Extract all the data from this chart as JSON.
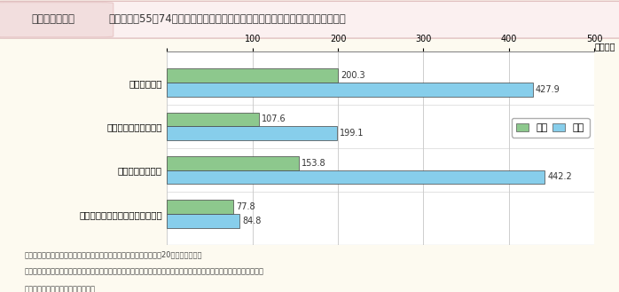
{
  "title_box_text": "第１－４－１図",
  "title_main_text": "高齢者等（55～74歳）の本人の就業パターンによる年間収入（平均額）（性別）",
  "categories": [
    "主に正規雇用",
    "非正規雇用が最も長い",
    "自営業が最も長い",
    "仕事をしていない期間が最も長い"
  ],
  "female_values": [
    200.3,
    107.6,
    153.8,
    77.8
  ],
  "male_values": [
    427.9,
    199.1,
    442.2,
    84.8
  ],
  "female_color": "#8DC88D",
  "male_color": "#87CEEB",
  "female_label": "女性",
  "male_label": "男性",
  "xlim": [
    0,
    500
  ],
  "xticks": [
    0,
    100,
    200,
    300,
    400,
    500
  ],
  "xlabel_suffix": "（万円）",
  "background_color": "#FDFAF0",
  "header_bg_color": "#F2DEDE",
  "header_outline_color": "#E8C8C8",
  "plot_bg_color": "#FFFFFF",
  "note_line1": "（備考）１．内閣府「高齢男女の自立した生活に関する調査」（平成20年）より作成。",
  "note_line2": "　　　　２．「収入」は税込みであり、就業による収入、年金等による収入のほか、預貯金の引き出し、家賃収入や利子",
  "note_line3": "　　　　　　等による収入も含む。"
}
